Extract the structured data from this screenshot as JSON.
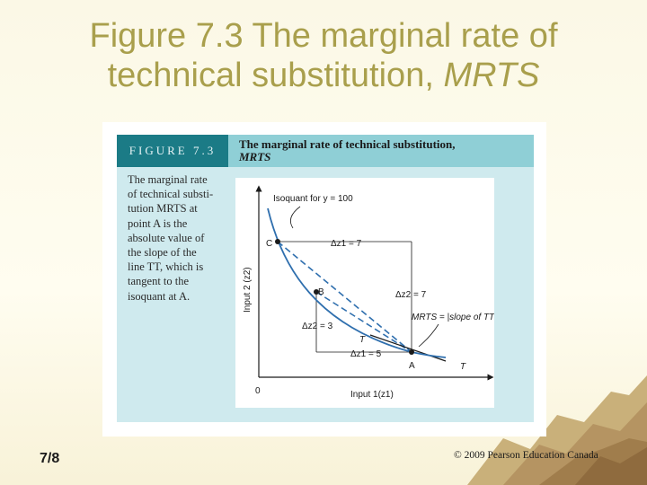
{
  "slide": {
    "title_line1": "Figure 7.3 The marginal rate of",
    "title_line2": "technical substitution, ",
    "title_italic": "MRTS",
    "page_number": "7/8",
    "copyright": "© 2009 Pearson Education Canada"
  },
  "figure": {
    "label": "FIGURE 7.3",
    "title_line1": "The marginal rate of technical substitution,",
    "title_line2": "MRTS",
    "caption_lines": [
      "The marginal rate",
      "of technical substi-",
      "tution MRTS at",
      "point A is the",
      "absolute value of",
      "the slope of the",
      "line TT, which is",
      "tangent to the",
      "isoquant at A."
    ]
  },
  "chart_data": {
    "type": "line",
    "xlabel": "Input 1(z1)",
    "ylabel": "Input 2 (z2)",
    "origin_label": "0",
    "isoquant_label": "Isoquant for y = 100",
    "points": [
      {
        "name": "C",
        "label": "C"
      },
      {
        "name": "B",
        "label": "B"
      },
      {
        "name": "A",
        "label": "A"
      }
    ],
    "annotations": {
      "dz1_top": "Δz1 = 7",
      "dz2_right": "Δz2 = 7",
      "dz2_left": "Δz2 = 3",
      "dz1_bottom": "Δz1 = 5",
      "mrts": "MRTS = |slope of TT|",
      "tangent_label_left": "T",
      "tangent_label_right": "T"
    }
  }
}
